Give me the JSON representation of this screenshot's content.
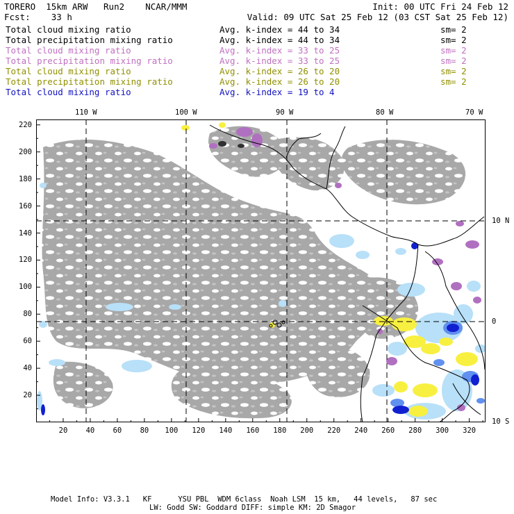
{
  "header": {
    "model": "TORERO",
    "resolution": "15km ARW",
    "run": "Run2",
    "org": "NCAR/MMM",
    "init": "Init: 00 UTC Fri 24 Feb 12",
    "fcst_label": "Fcst:",
    "fcst_value": "33 h",
    "valid": "Valid: 09 UTC Sat 25 Feb 12 (03 CST Sat 25 Feb 12)"
  },
  "legend": [
    {
      "field": "Total cloud mixing ratio",
      "avg": "Avg. k-index = 44 to 34",
      "sm": "sm= 2",
      "color": "#000000"
    },
    {
      "field": "Total precipitation mixing ratio",
      "avg": "Avg. k-index = 44 to 34",
      "sm": "sm= 2",
      "color": "#000000"
    },
    {
      "field": "Total cloud mixing ratio",
      "avg": "Avg. k-index = 33 to 25",
      "sm": "sm= 2",
      "color": "#c070c0"
    },
    {
      "field": "Total precipitation mixing ratio",
      "avg": "Avg. k-index = 33 to 25",
      "sm": "sm= 2",
      "color": "#c070c0"
    },
    {
      "field": "Total cloud mixing ratio",
      "avg": "Avg. k-index = 26 to 20",
      "sm": "sm= 2",
      "color": "#909000"
    },
    {
      "field": "Total precipitation mixing ratio",
      "avg": "Avg. k-index = 26 to 20",
      "sm": "sm= 2",
      "color": "#909000"
    },
    {
      "field": "Total cloud mixing ratio",
      "avg": "Avg. k-index = 19 to 4",
      "sm": "",
      "color": "#1010c0"
    }
  ],
  "map": {
    "top_lon_labels": [
      "110 W",
      "100 W",
      "90 W",
      "80 W",
      "70 W"
    ],
    "right_lat_labels": [
      "10 N",
      "0",
      "10 S"
    ],
    "x_ticks": [
      "20",
      "40",
      "60",
      "80",
      "100",
      "120",
      "140",
      "160",
      "180",
      "200",
      "220",
      "240",
      "260",
      "280",
      "300",
      "320"
    ],
    "y_ticks": [
      "220",
      "200",
      "180",
      "160",
      "140",
      "120",
      "100",
      "80",
      "60",
      "40",
      "20"
    ],
    "x_range": [
      0,
      332
    ],
    "y_range": [
      0,
      224
    ],
    "colors": {
      "cloud_gray": "#a8a8a8",
      "light_blue": "#b8e0f8",
      "mid_blue": "#6090f0",
      "deep_blue": "#1020d0",
      "yellow": "#f8f040",
      "purple": "#b070c0",
      "dark": "#303030"
    }
  },
  "footer": {
    "line1": "Model Info: V3.3.1   KF      YSU PBL  WDM 6class  Noah LSM  15 km,   44 levels,   87 sec",
    "line2": "LW: Godd SW: Goddard DIFF: simple KM: 2D Smagor"
  }
}
